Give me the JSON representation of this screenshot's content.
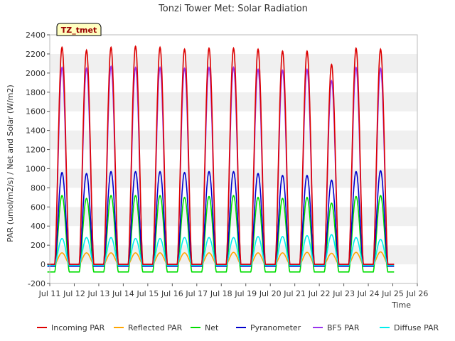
{
  "chart_data": {
    "type": "line",
    "title": "Tonzi Tower Met: Solar Radiation",
    "xlabel": "Time",
    "ylabel": "PAR (umol/m2/s) / Net and Solar (W/m2)",
    "site_label": "TZ_tmet",
    "xlim": [
      11,
      26
    ],
    "ylim": [
      -200,
      2400
    ],
    "x_ticks": [
      11,
      12,
      13,
      14,
      15,
      16,
      17,
      18,
      19,
      20,
      21,
      22,
      23,
      24,
      25,
      26
    ],
    "x_tick_labels": [
      "Jul 11",
      "Jul 12",
      "Jul 13",
      "Jul 14",
      "Jul 15",
      "Jul 16",
      "Jul 17",
      "Jul 18",
      "Jul 19",
      "Jul 20",
      "Jul 21",
      "Jul 22",
      "Jul 23",
      "Jul 24",
      "Jul 25",
      "Jul 26"
    ],
    "y_ticks": [
      -200,
      0,
      200,
      400,
      600,
      800,
      1000,
      1200,
      1400,
      1600,
      1800,
      2000,
      2200,
      2400
    ],
    "grid": "horizontal bands",
    "legend_position": "bottom",
    "days": [
      11.5,
      12.5,
      13.5,
      14.5,
      15.5,
      16.5,
      17.5,
      18.5,
      19.5,
      20.5,
      21.5,
      22.5,
      23.5,
      24.5
    ],
    "series": [
      {
        "name": "Incoming PAR",
        "color": "#dd0000",
        "night": 0,
        "daily_peak": [
          2270,
          2240,
          2270,
          2280,
          2270,
          2250,
          2260,
          2260,
          2250,
          2230,
          2230,
          2090,
          2260,
          2250
        ]
      },
      {
        "name": "Reflected PAR",
        "color": "#ffa500",
        "night": 0,
        "daily_peak": [
          120,
          120,
          120,
          120,
          120,
          120,
          120,
          125,
          120,
          120,
          125,
          115,
          125,
          130
        ]
      },
      {
        "name": "Net",
        "color": "#00dd00",
        "night": -80,
        "daily_peak": [
          720,
          690,
          720,
          720,
          720,
          700,
          710,
          720,
          700,
          690,
          700,
          640,
          710,
          720
        ]
      },
      {
        "name": "Pyranometer",
        "color": "#0000cc",
        "night": -20,
        "daily_peak": [
          960,
          950,
          970,
          970,
          970,
          960,
          970,
          970,
          950,
          930,
          930,
          880,
          970,
          980
        ]
      },
      {
        "name": "BF5 PAR",
        "color": "#9933ee",
        "night": 0,
        "daily_peak": [
          2060,
          2050,
          2070,
          2060,
          2060,
          2050,
          2060,
          2060,
          2040,
          2030,
          2040,
          1920,
          2060,
          2050
        ]
      },
      {
        "name": "Diffuse PAR",
        "color": "#00eeee",
        "night": -10,
        "daily_peak": [
          270,
          280,
          280,
          270,
          270,
          280,
          280,
          280,
          290,
          290,
          300,
          310,
          280,
          260
        ]
      }
    ]
  }
}
